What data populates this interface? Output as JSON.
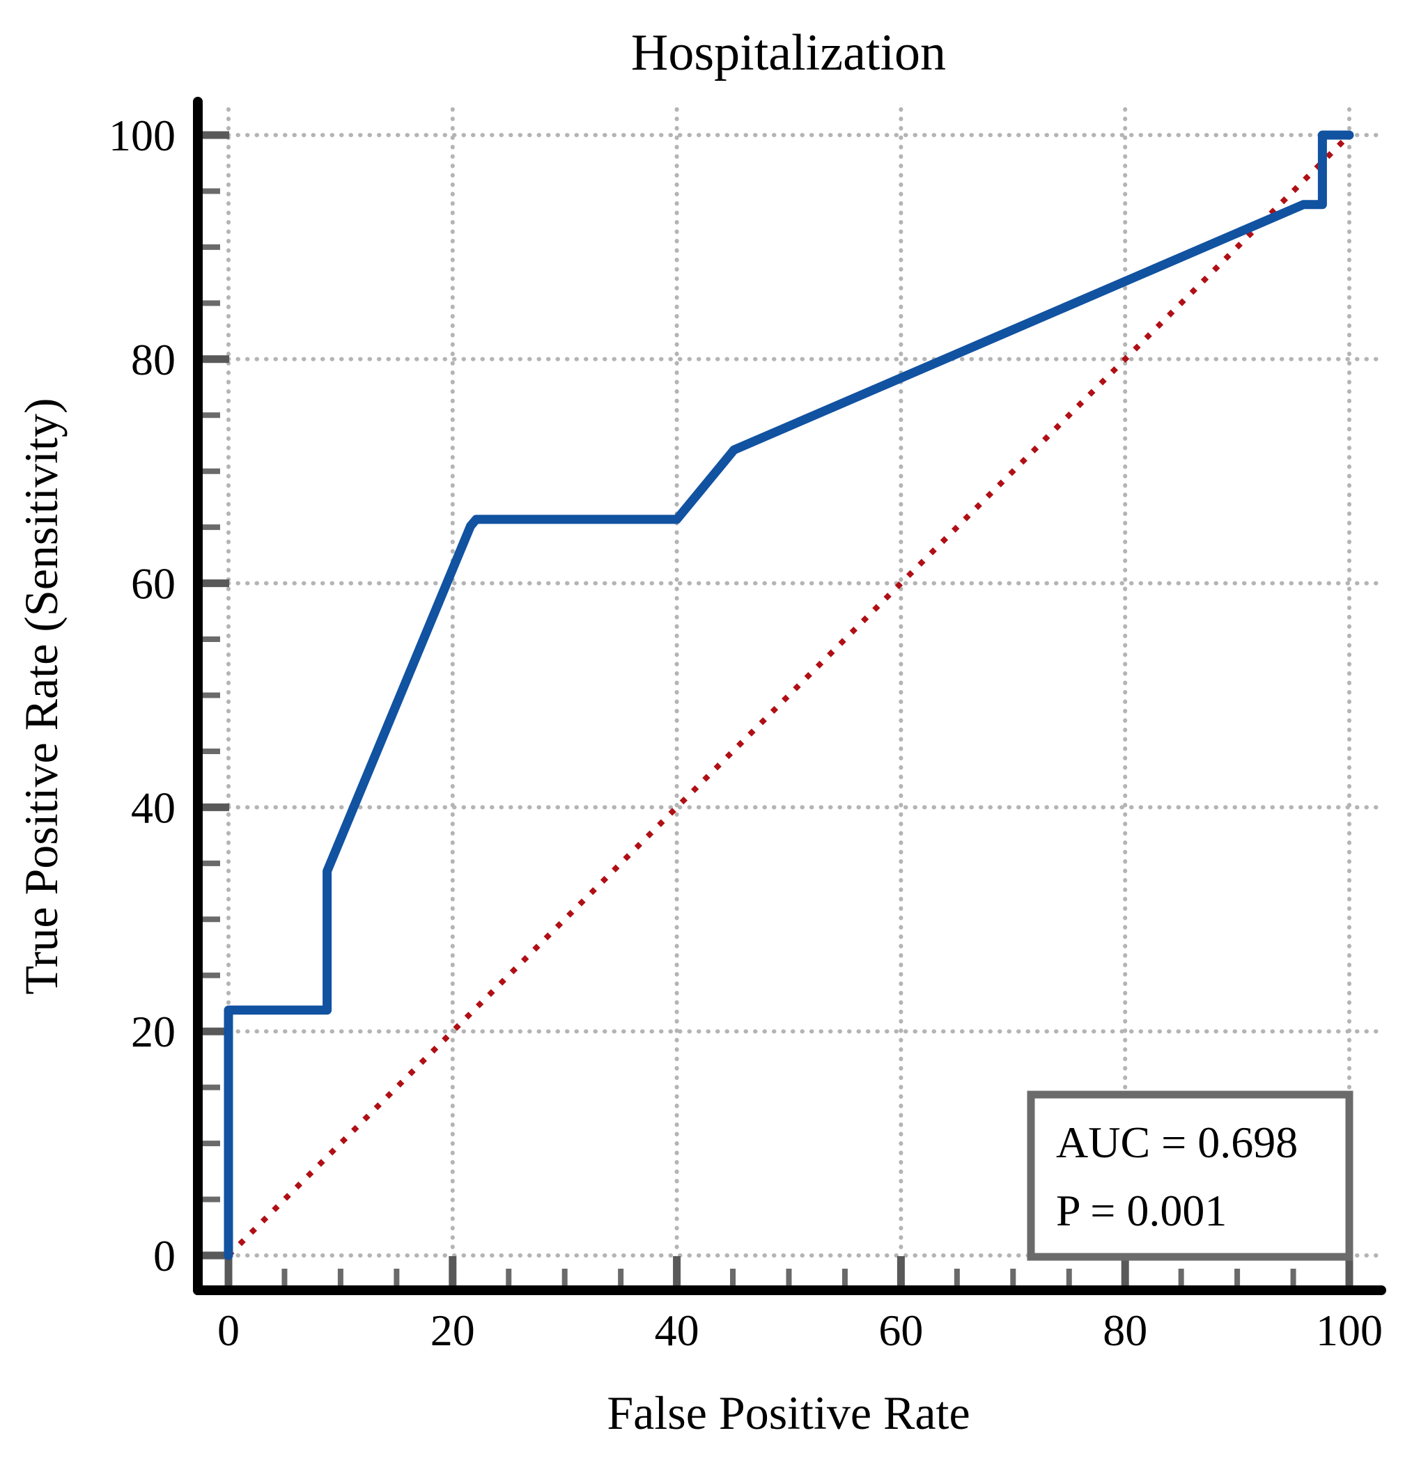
{
  "title": "Hospitalization",
  "axis": {
    "x_label": "False Positive Rate",
    "y_label": "True Positive Rate (Sensitivity)",
    "x_tick_labels": [
      "0",
      "20",
      "40",
      "60",
      "80",
      "100"
    ],
    "y_tick_labels": [
      "0",
      "20",
      "40",
      "60",
      "80",
      "100"
    ]
  },
  "annotation": {
    "auc_label": "AUC = 0.698",
    "p_label": "P = 0.001"
  },
  "colors": {
    "roc_line": "#1152A1",
    "reference_line": "#B00F15",
    "gridline": "#B4B4B4",
    "major_tick": "#595959",
    "minor_tick": "#6A6A6A",
    "spine": "#000000",
    "annotation_border": "#6B6B6B",
    "annotation_fill": "#FFFFFF"
  },
  "chart_data": {
    "type": "line",
    "title": "Hospitalization",
    "xlabel": "False Positive Rate",
    "ylabel": "True Positive Rate (Sensitivity)",
    "xlim": [
      0,
      100
    ],
    "ylim": [
      0,
      100
    ],
    "xticks": [
      0,
      20,
      40,
      60,
      80,
      100
    ],
    "yticks": [
      0,
      20,
      40,
      60,
      80,
      100
    ],
    "minor_tick_step": 5,
    "grid": true,
    "grid_style": "dotted",
    "legend_position": "none",
    "series": [
      {
        "name": "ROC curve",
        "color": "#1152A1",
        "style": "solid",
        "points": [
          [
            0,
            0
          ],
          [
            0,
            21.9
          ],
          [
            8.8,
            21.9
          ],
          [
            8.8,
            34.3
          ],
          [
            21.6,
            65.1
          ],
          [
            22.1,
            65.7
          ],
          [
            40,
            65.7
          ],
          [
            45.1,
            71.9
          ],
          [
            95.9,
            93.8
          ],
          [
            97.6,
            93.8
          ],
          [
            97.6,
            100
          ],
          [
            100,
            100
          ]
        ]
      },
      {
        "name": "Chance diagonal",
        "color": "#B00F15",
        "style": "dotted",
        "points": [
          [
            0,
            0
          ],
          [
            100,
            100
          ]
        ]
      }
    ],
    "annotations": [
      {
        "text": "AUC = 0.698"
      },
      {
        "text": "P = 0.001"
      }
    ]
  }
}
